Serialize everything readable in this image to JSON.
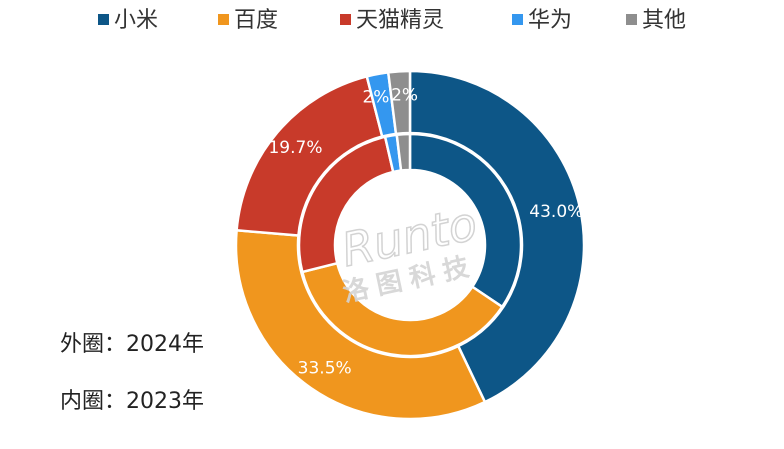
{
  "chart_data": {
    "type": "donut",
    "categories": [
      "小米",
      "百度",
      "天猫精灵",
      "华为",
      "其他"
    ],
    "colors": [
      "#0d5687",
      "#f0961e",
      "#c83a2a",
      "#3497ef",
      "#8e8e8e"
    ],
    "rings": [
      {
        "values": [
          43.0,
          33.5,
          19.7,
          2,
          2
        ],
        "value_labels": [
          "43.0%",
          "33.5%",
          "19.7%",
          "2%",
          "2%"
        ]
      },
      {
        "values": [
          34.4,
          36.7,
          25.3,
          1.7,
          1.9
        ]
      }
    ],
    "annotations": [
      "外圈：2024年",
      "内圈：2023年"
    ],
    "watermark": [
      "Runto",
      "洛图科技"
    ],
    "legend": "top"
  }
}
